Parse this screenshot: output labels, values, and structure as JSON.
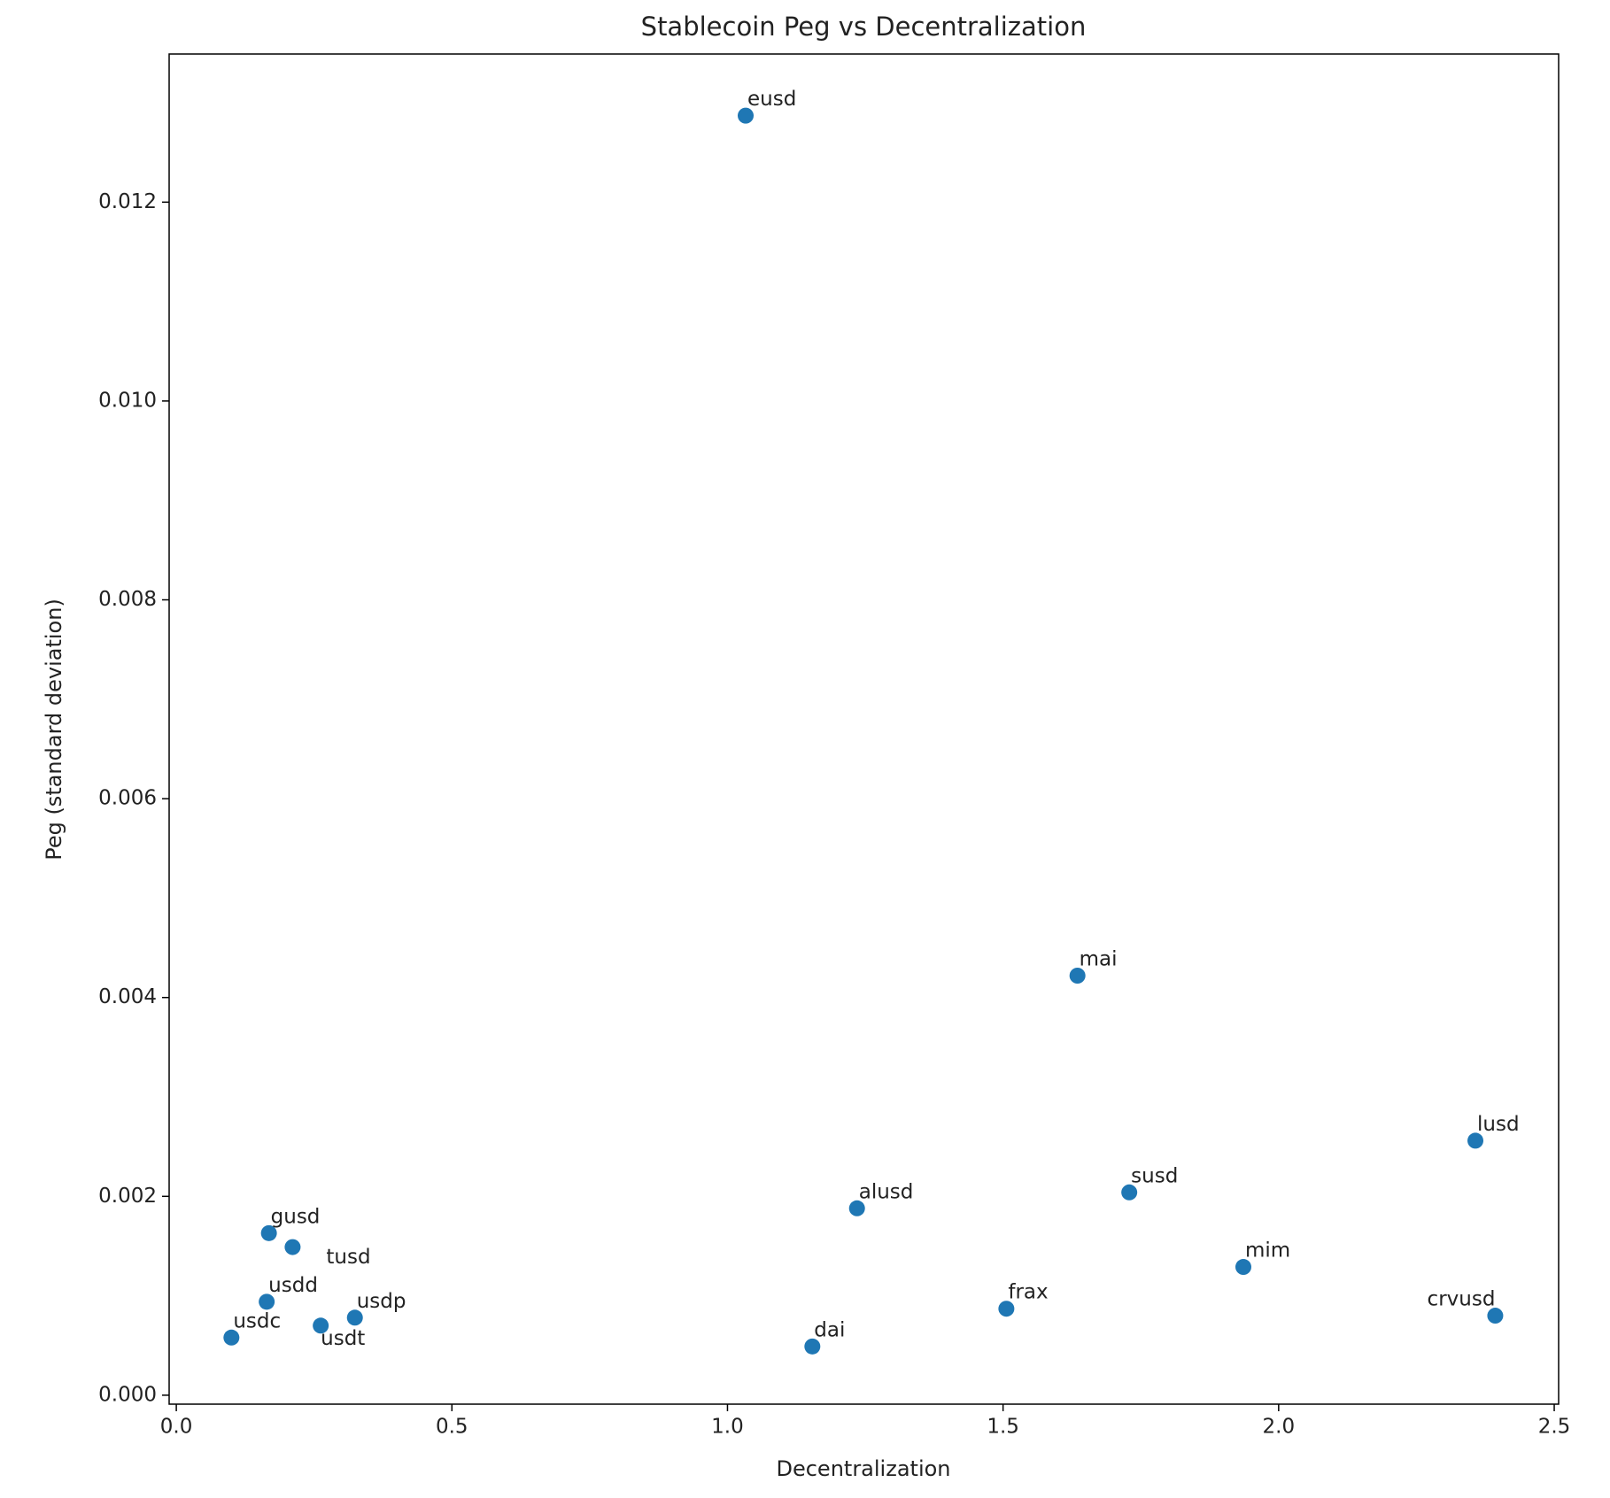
{
  "chart_data": {
    "type": "scatter",
    "title": "Stablecoin Peg vs Decentralization",
    "x_label": "Decentralization",
    "y_label": "Peg (standard deviation)",
    "labels": [
      "eusd",
      "mai",
      "lusd",
      "susd",
      "alusd",
      "mim",
      "crvusd",
      "frax",
      "dai",
      "gusd",
      "tusd",
      "usdd",
      "usdc",
      "usdt",
      "usdp"
    ],
    "x": [
      1.033,
      1.635,
      2.357,
      1.729,
      1.235,
      1.936,
      2.393,
      1.506,
      1.154,
      0.168,
      0.211,
      0.164,
      0.1,
      0.262,
      0.324
    ],
    "values": [
      0.01287,
      0.00422,
      0.00256,
      0.00204,
      0.00188,
      0.00129,
      0.0008,
      0.00087,
      0.00049,
      0.00163,
      0.00149,
      0.00094,
      0.00058,
      0.0007,
      0.00078
    ],
    "color": "#1f77b4",
    "xlim": [
      -0.013,
      2.508
    ],
    "ylim": [
      -9e-05,
      0.01349
    ],
    "xticks": [
      {
        "value": 0,
        "label": "0.0"
      },
      0.5,
      {
        "value": 1,
        "label": "1.0"
      },
      1.5,
      {
        "value": 2,
        "label": "2.0"
      },
      2.5
    ],
    "yticks": [
      {
        "value": 0,
        "label": "0.000"
      },
      0.002,
      0.004,
      0.006,
      0.008,
      {
        "value": 0.01,
        "label": "0.010"
      },
      0.012
    ]
  }
}
